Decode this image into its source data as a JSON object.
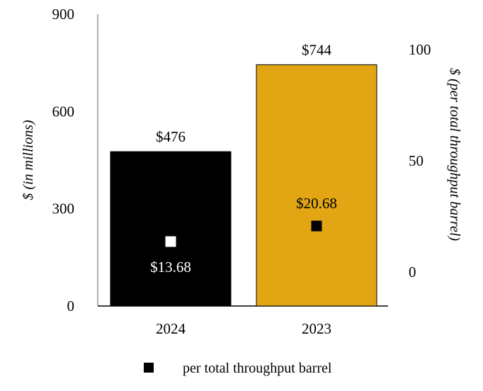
{
  "chart_data": {
    "type": "bar",
    "categories": [
      "2024",
      "2023"
    ],
    "series": [
      {
        "values": [
          476,
          744
        ],
        "labels": [
          "$476",
          "$744"
        ],
        "colors": [
          "#000000",
          "#E2A614"
        ],
        "axis": "left"
      },
      {
        "name": "per total throughput barrel",
        "type": "scatter",
        "values": [
          13.68,
          20.68
        ],
        "labels": [
          "$13.68",
          "$20.68"
        ],
        "colors": [
          "#FFFFFF",
          "#000000"
        ],
        "axis": "right"
      }
    ],
    "ylabel": "$ (in millions)",
    "ylim": [
      0,
      900
    ],
    "yticks": [
      "0",
      "300",
      "600",
      "900"
    ],
    "y2label": "$ (per total throughput barrel)",
    "y2lim": [
      -15,
      115
    ],
    "y2ticks": [
      "0",
      "50",
      "100"
    ],
    "legend": {
      "position": "bottom",
      "entries": [
        {
          "label": "per total throughput barrel",
          "color": "#000000"
        }
      ]
    },
    "grid": false
  }
}
